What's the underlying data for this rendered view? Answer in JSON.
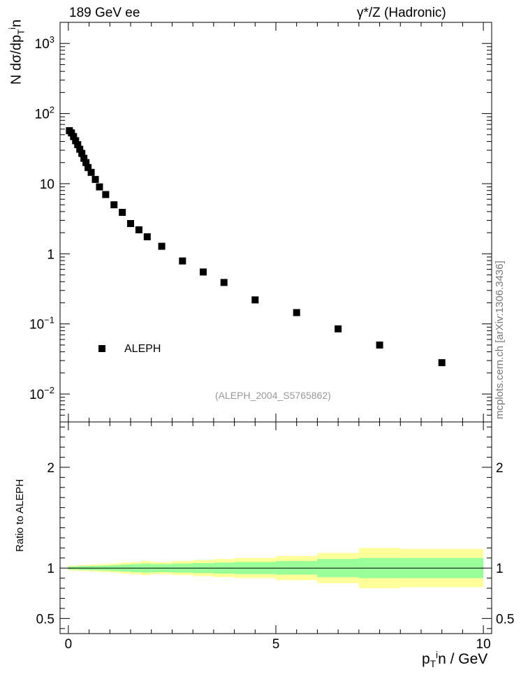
{
  "header": {
    "left": "189 GeV ee",
    "right": "γ*/Z (Hadronic)"
  },
  "axes": {
    "main_ylabel": "N dσ/dp",
    "ratio_ylabel": "Ratio to ALEPH",
    "xlabel": "p",
    "xlabel_suffix": "n / GeV"
  },
  "side_label": "mcplots.cern.ch [arXiv:1306.3436]",
  "analysis_note": "(ALEPH_2004_S5765862)",
  "legend": {
    "label": "ALEPH"
  },
  "colors": {
    "inner_band": "#99ff99",
    "outer_band": "#ffff99",
    "marker": "#000000"
  },
  "chart_data": [
    {
      "type": "scatter",
      "title": "",
      "ylabel": "N dσ/dp_T^in",
      "xlabel": "",
      "xlim": [
        -0.2,
        10.2
      ],
      "ylim": [
        0.004,
        2000
      ],
      "yscale": "log",
      "y_ticks": [
        "10^-2",
        "10^-1",
        "1",
        "10",
        "10^2",
        "10^3"
      ],
      "grid": false,
      "legend_position": "lower-left",
      "series": [
        {
          "name": "ALEPH",
          "x": [
            0.025,
            0.075,
            0.125,
            0.175,
            0.225,
            0.275,
            0.325,
            0.375,
            0.425,
            0.475,
            0.55,
            0.65,
            0.75,
            0.9,
            1.1,
            1.3,
            1.5,
            1.7,
            1.9,
            2.25,
            2.75,
            3.25,
            3.75,
            4.5,
            5.5,
            6.5,
            7.5,
            9.0
          ],
          "y": [
            57,
            53,
            47,
            41,
            36,
            31,
            27,
            23,
            20,
            17,
            14.5,
            11.5,
            9.0,
            7.0,
            5.0,
            3.9,
            2.7,
            2.2,
            1.75,
            1.28,
            0.79,
            0.55,
            0.39,
            0.22,
            0.145,
            0.085,
            0.05,
            0.028
          ]
        }
      ]
    },
    {
      "type": "area",
      "title": "",
      "ylabel": "Ratio to ALEPH",
      "xlabel": "p_T^in / GeV",
      "xlim": [
        -0.2,
        10.2
      ],
      "ylim": [
        0.35,
        2.45
      ],
      "x_ticks": [
        0,
        5,
        10
      ],
      "y_ticks": [
        0.5,
        1,
        2
      ],
      "grid": false,
      "bins": [
        0,
        0.25,
        0.5,
        0.75,
        1.0,
        1.25,
        1.5,
        1.75,
        2.0,
        2.5,
        3.0,
        3.5,
        4.0,
        5.0,
        6.0,
        7.0,
        8.0,
        10.0
      ],
      "series": [
        {
          "name": "",
          "type": "band",
          "lower": [
            0.985,
            0.98,
            0.978,
            0.975,
            0.97,
            0.965,
            0.96,
            0.955,
            0.96,
            0.955,
            0.95,
            0.945,
            0.94,
            0.935,
            0.91,
            0.9,
            0.9
          ],
          "upper": [
            1.015,
            1.02,
            1.022,
            1.025,
            1.03,
            1.035,
            1.04,
            1.045,
            1.04,
            1.045,
            1.05,
            1.055,
            1.06,
            1.07,
            1.09,
            1.1,
            1.1
          ]
        },
        {
          "name": "",
          "type": "band",
          "lower": [
            0.975,
            0.97,
            0.965,
            0.96,
            0.955,
            0.945,
            0.94,
            0.93,
            0.94,
            0.93,
            0.92,
            0.91,
            0.9,
            0.88,
            0.85,
            0.8,
            0.81
          ],
          "upper": [
            1.025,
            1.03,
            1.035,
            1.04,
            1.045,
            1.055,
            1.06,
            1.07,
            1.06,
            1.07,
            1.08,
            1.09,
            1.1,
            1.12,
            1.15,
            1.2,
            1.19
          ]
        }
      ]
    }
  ]
}
